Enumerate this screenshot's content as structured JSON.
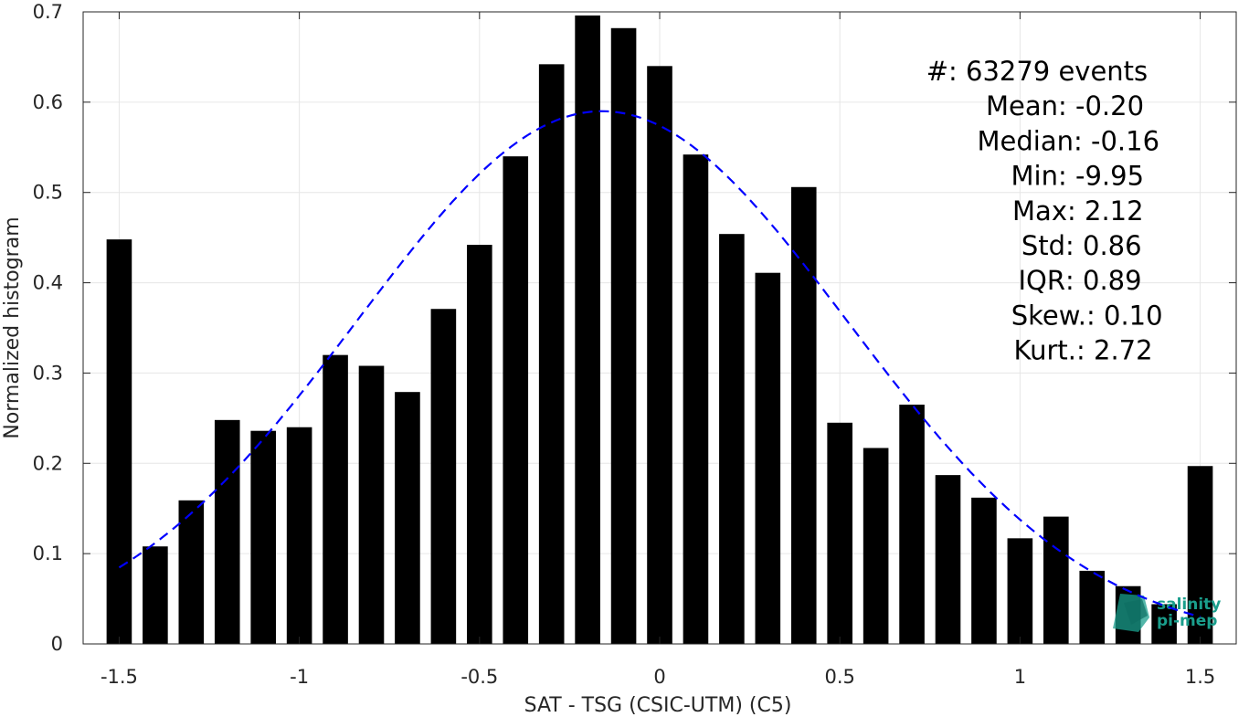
{
  "chart_data": {
    "type": "bar",
    "xlabel": "SAT - TSG (CSIC-UTM) (C5)",
    "ylabel": "Normalized histogram",
    "xlim": [
      -1.6,
      1.6
    ],
    "ylim": [
      0,
      0.7
    ],
    "grid": true,
    "x_ticks": [
      -1.5,
      -1,
      -0.5,
      0,
      0.5,
      1,
      1.5
    ],
    "x_tick_labels": [
      "-1.5",
      "-1",
      "-0.5",
      "0",
      "0.5",
      "1",
      "1.5"
    ],
    "y_ticks": [
      0,
      0.1,
      0.2,
      0.3,
      0.4,
      0.5,
      0.6,
      0.7
    ],
    "y_tick_labels": [
      "0",
      "0.1",
      "0.2",
      "0.3",
      "0.4",
      "0.5",
      "0.6",
      "0.7"
    ],
    "bar_width": 0.07,
    "x": [
      -1.5,
      -1.4,
      -1.3,
      -1.2,
      -1.1,
      -1.0,
      -0.9,
      -0.8,
      -0.7,
      -0.6,
      -0.5,
      -0.4,
      -0.3,
      -0.2,
      -0.1,
      0.0,
      0.1,
      0.2,
      0.3,
      0.4,
      0.5,
      0.6,
      0.7,
      0.8,
      0.9,
      1.0,
      1.1,
      1.2,
      1.3,
      1.4,
      1.5
    ],
    "values": [
      0.448,
      0.108,
      0.159,
      0.248,
      0.236,
      0.24,
      0.32,
      0.308,
      0.279,
      0.371,
      0.442,
      0.54,
      0.642,
      0.696,
      0.682,
      0.64,
      0.542,
      0.454,
      0.411,
      0.506,
      0.245,
      0.217,
      0.265,
      0.187,
      0.162,
      0.117,
      0.141,
      0.081,
      0.064,
      0.044,
      0.197
    ],
    "bar_color": "#000000",
    "fit_curve": {
      "type": "gaussian",
      "mean": -0.16,
      "sigma": 0.68,
      "peak": 0.59,
      "x_range": [
        -1.5,
        1.5
      ],
      "color": "#0000ff",
      "style": "dashed"
    },
    "stats": [
      {
        "label": "#  ",
        "value": ": 63279 events"
      },
      {
        "label": "Mean ",
        "value": ": -0.20"
      },
      {
        "label": "Median ",
        "value": ": -0.16"
      },
      {
        "label": "Min ",
        "value": ": -9.95"
      },
      {
        "label": "Max ",
        "value": ": 2.12"
      },
      {
        "label": "Std ",
        "value": ": 0.86"
      },
      {
        "label": "IQR ",
        "value": ": 0.89"
      },
      {
        "label": "Skew. ",
        "value": ": 0.10"
      },
      {
        "label": "Kurt. ",
        "value": ": 2.72"
      }
    ]
  },
  "watermark": {
    "line1": "salinity",
    "line2": "pi-mep",
    "color": "#1a9e8c"
  }
}
